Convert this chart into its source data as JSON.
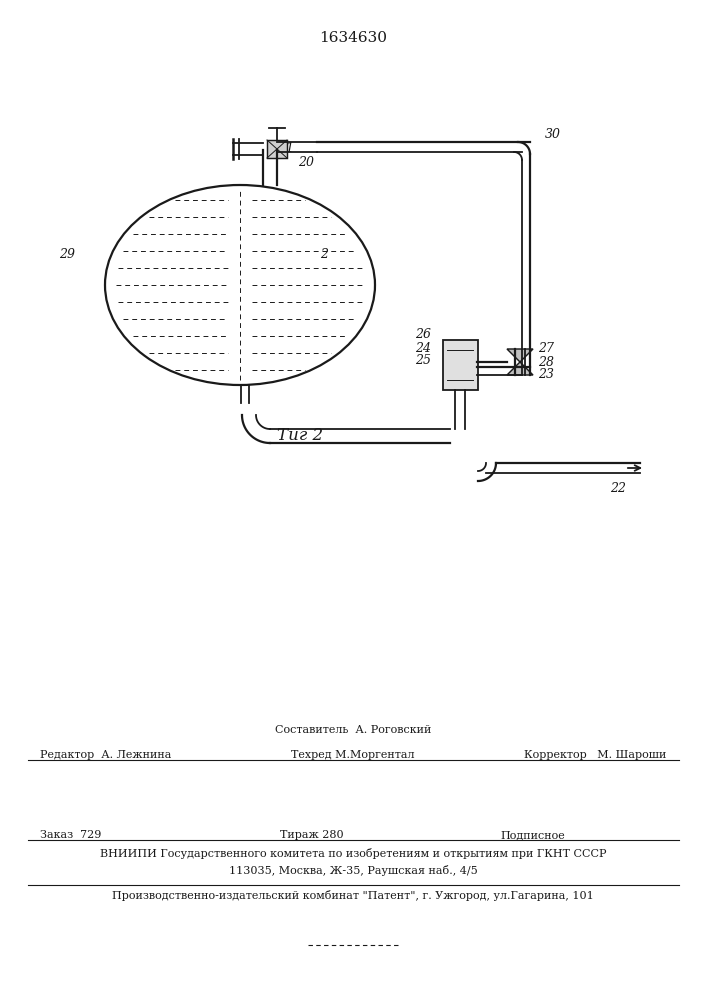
{
  "patent_number": "1634630",
  "figure_label": "Τиг 2",
  "background_color": "#ffffff",
  "line_color": "#1a1a1a",
  "footer_line1_center_top": "Составитель  А. Роговский",
  "footer_line1_left": "Редактор  А. Лежнина",
  "footer_line1_center": "Техред М.Моргентал",
  "footer_line1_right": "Корректор   М. Шароши",
  "footer_line2_col1": "Заказ  729",
  "footer_line2_col2": "Тираж 280",
  "footer_line2_col3": "Подписное",
  "footer_line3": "ВНИИПИ Государственного комитета по изобретениям и открытиям при ГКНТ СССР",
  "footer_line4": "113035, Москва, Ж-35, Раушская наб., 4/5",
  "footer_line5": "Производственно-издательский комбинат \"Патент\", г. Ужгород, ул.Гагарина, 101"
}
